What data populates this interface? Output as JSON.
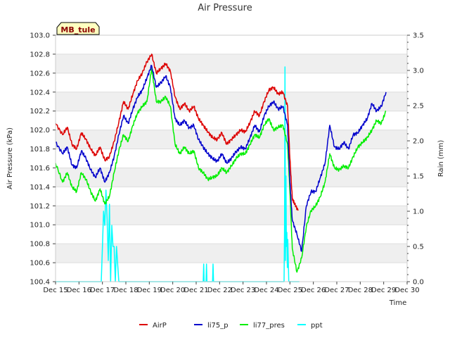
{
  "chart_data": {
    "type": "line",
    "title": "Air Pressure",
    "station_label": "MB_tule",
    "xlabel": "Time",
    "ylabel": "Air Pressure (kPa)",
    "y2label": "Rain (mm)",
    "xlim": [
      15,
      30
    ],
    "ylim": [
      100.4,
      103.0
    ],
    "y2lim": [
      0.0,
      3.5
    ],
    "x_ticks": [
      15,
      16,
      17,
      18,
      19,
      20,
      21,
      22,
      23,
      24,
      25,
      26,
      27,
      28,
      29,
      30
    ],
    "x_tick_labels": [
      "Dec 15",
      "Dec 16",
      "Dec 17",
      "Dec 18",
      "Dec 19",
      "Dec 20",
      "Dec 21",
      "Dec 22",
      "Dec 23",
      "Dec 24",
      "Dec 25",
      "Dec 26",
      "Dec 27",
      "Dec 28",
      "Dec 29",
      "Dec 30"
    ],
    "y_ticks": [
      100.4,
      100.6,
      100.8,
      101.0,
      101.2,
      101.4,
      101.6,
      101.8,
      102.0,
      102.2,
      102.4,
      102.6,
      102.8,
      103.0
    ],
    "y_tick_labels": [
      "100.4",
      "100.6",
      "100.8",
      "101.0",
      "101.2",
      "101.4",
      "101.6",
      "101.8",
      "102.0",
      "102.2",
      "102.4",
      "102.6",
      "102.8",
      "103.0"
    ],
    "y2_ticks": [
      0.0,
      0.5,
      1.0,
      1.5,
      2.0,
      2.5,
      3.0,
      3.5
    ],
    "y2_tick_labels": [
      "0.0",
      "0.5",
      "1.0",
      "1.5",
      "2.0",
      "2.5",
      "3.0",
      "3.5"
    ],
    "legend_position": "bottom",
    "series": [
      {
        "name": "AirP",
        "color": "#dd0000",
        "axis": "left",
        "x": [
          15.0,
          15.3,
          15.5,
          15.7,
          15.9,
          16.1,
          16.3,
          16.5,
          16.7,
          16.9,
          17.1,
          17.3,
          17.5,
          17.7,
          17.9,
          18.1,
          18.3,
          18.5,
          18.7,
          18.9,
          19.1,
          19.3,
          19.5,
          19.7,
          19.9,
          20.1,
          20.3,
          20.5,
          20.7,
          20.9,
          21.1,
          21.3,
          21.5,
          21.7,
          21.9,
          22.1,
          22.3,
          22.5,
          22.7,
          22.9,
          23.1,
          23.3,
          23.5,
          23.7,
          23.9,
          24.1,
          24.3,
          24.5,
          24.7,
          24.9,
          25.0,
          25.1,
          25.2,
          25.35
        ],
        "y": [
          102.07,
          101.95,
          102.03,
          101.85,
          101.8,
          101.97,
          101.9,
          101.8,
          101.73,
          101.82,
          101.68,
          101.72,
          101.88,
          102.08,
          102.3,
          102.22,
          102.38,
          102.52,
          102.6,
          102.72,
          102.8,
          102.6,
          102.65,
          102.7,
          102.62,
          102.35,
          102.22,
          102.28,
          102.2,
          102.25,
          102.12,
          102.05,
          101.98,
          101.92,
          101.9,
          101.97,
          101.85,
          101.9,
          101.95,
          102.0,
          101.98,
          102.08,
          102.2,
          102.15,
          102.3,
          102.42,
          102.45,
          102.38,
          102.4,
          102.25,
          101.7,
          101.28,
          101.22,
          101.15
        ]
      },
      {
        "name": "li75_p",
        "color": "#0000cc",
        "axis": "left",
        "x": [
          15.0,
          15.3,
          15.5,
          15.7,
          15.9,
          16.1,
          16.3,
          16.5,
          16.7,
          16.9,
          17.1,
          17.3,
          17.5,
          17.7,
          17.9,
          18.1,
          18.3,
          18.5,
          18.7,
          18.9,
          19.1,
          19.3,
          19.5,
          19.7,
          19.9,
          20.1,
          20.3,
          20.5,
          20.7,
          20.9,
          21.1,
          21.3,
          21.5,
          21.7,
          21.9,
          22.1,
          22.3,
          22.5,
          22.7,
          22.9,
          23.1,
          23.3,
          23.5,
          23.7,
          23.9,
          24.1,
          24.3,
          24.5,
          24.7,
          24.9,
          25.0,
          25.1,
          25.3,
          25.5,
          25.7,
          25.9,
          26.1,
          26.3,
          26.5,
          26.7,
          26.9,
          27.1,
          27.3,
          27.5,
          27.7,
          27.9,
          28.1,
          28.3,
          28.5,
          28.7,
          28.9,
          29.1
        ],
        "y": [
          101.87,
          101.75,
          101.82,
          101.63,
          101.6,
          101.78,
          101.7,
          101.58,
          101.5,
          101.6,
          101.45,
          101.55,
          101.72,
          101.95,
          102.15,
          102.07,
          102.22,
          102.35,
          102.42,
          102.55,
          102.68,
          102.45,
          102.5,
          102.57,
          102.45,
          102.12,
          102.05,
          102.1,
          102.02,
          102.05,
          101.9,
          101.82,
          101.75,
          101.7,
          101.67,
          101.75,
          101.65,
          101.7,
          101.77,
          101.82,
          101.8,
          101.92,
          102.05,
          101.98,
          102.15,
          102.25,
          102.3,
          102.22,
          102.25,
          102.05,
          101.45,
          101.05,
          100.9,
          100.72,
          101.2,
          101.35,
          101.35,
          101.5,
          101.65,
          102.05,
          101.82,
          101.8,
          101.87,
          101.8,
          101.95,
          101.97,
          102.05,
          102.12,
          102.28,
          102.2,
          102.25,
          102.4
        ]
      },
      {
        "name": "li77_pres",
        "color": "#00ee00",
        "axis": "left",
        "x": [
          15.0,
          15.3,
          15.5,
          15.7,
          15.9,
          16.1,
          16.3,
          16.5,
          16.7,
          16.9,
          17.1,
          17.3,
          17.5,
          17.7,
          17.9,
          18.1,
          18.3,
          18.5,
          18.7,
          18.9,
          19.1,
          19.3,
          19.5,
          19.7,
          19.9,
          20.1,
          20.3,
          20.5,
          20.7,
          20.9,
          21.1,
          21.3,
          21.5,
          21.7,
          21.9,
          22.1,
          22.3,
          22.5,
          22.7,
          22.9,
          23.1,
          23.3,
          23.5,
          23.7,
          23.9,
          24.1,
          24.3,
          24.5,
          24.7,
          24.9,
          25.0,
          25.1,
          25.3,
          25.5,
          25.7,
          25.9,
          26.1,
          26.3,
          26.5,
          26.7,
          26.9,
          27.1,
          27.3,
          27.5,
          27.7,
          27.9,
          28.1,
          28.3,
          28.5,
          28.7,
          28.9,
          29.1
        ],
        "y": [
          101.65,
          101.45,
          101.55,
          101.4,
          101.35,
          101.55,
          101.48,
          101.35,
          101.25,
          101.38,
          101.22,
          101.3,
          101.55,
          101.78,
          101.95,
          101.88,
          102.05,
          102.18,
          102.25,
          102.3,
          102.65,
          102.3,
          102.3,
          102.35,
          102.25,
          101.85,
          101.75,
          101.82,
          101.75,
          101.78,
          101.6,
          101.55,
          101.48,
          101.5,
          101.52,
          101.6,
          101.55,
          101.62,
          101.7,
          101.75,
          101.75,
          101.85,
          101.95,
          101.92,
          102.05,
          102.12,
          102.0,
          102.03,
          102.05,
          101.85,
          101.35,
          100.75,
          100.5,
          100.65,
          100.98,
          101.15,
          101.2,
          101.3,
          101.45,
          101.75,
          101.6,
          101.58,
          101.62,
          101.6,
          101.72,
          101.82,
          101.87,
          101.92,
          102.0,
          102.1,
          102.07,
          102.2
        ]
      },
      {
        "name": "ppt",
        "color": "#00ffff",
        "axis": "right",
        "x": [
          15.0,
          16.95,
          17.0,
          17.05,
          17.1,
          17.15,
          17.2,
          17.25,
          17.3,
          17.35,
          17.4,
          17.45,
          17.5,
          17.55,
          17.6,
          17.7,
          21.0,
          21.3,
          21.32,
          21.34,
          21.42,
          21.44,
          21.46,
          21.7,
          21.72,
          21.74,
          24.75,
          24.77,
          24.79,
          24.81,
          24.83,
          24.85,
          24.87,
          24.89,
          24.91,
          24.95,
          25.0,
          25.4
        ],
        "y": [
          0.0,
          0.0,
          0.5,
          1.0,
          0.8,
          1.3,
          0.9,
          0.3,
          1.1,
          0.0,
          0.8,
          0.5,
          0.5,
          0.0,
          0.5,
          0.0,
          0.0,
          0.0,
          0.25,
          0.0,
          0.0,
          0.25,
          0.0,
          0.0,
          0.25,
          0.0,
          0.0,
          0.8,
          3.05,
          0.3,
          1.5,
          0.5,
          0.7,
          0.2,
          0.6,
          0.0,
          0.0,
          0.0
        ]
      }
    ],
    "legend": [
      "AirP",
      "li75_p",
      "li77_pres",
      "ppt"
    ]
  }
}
